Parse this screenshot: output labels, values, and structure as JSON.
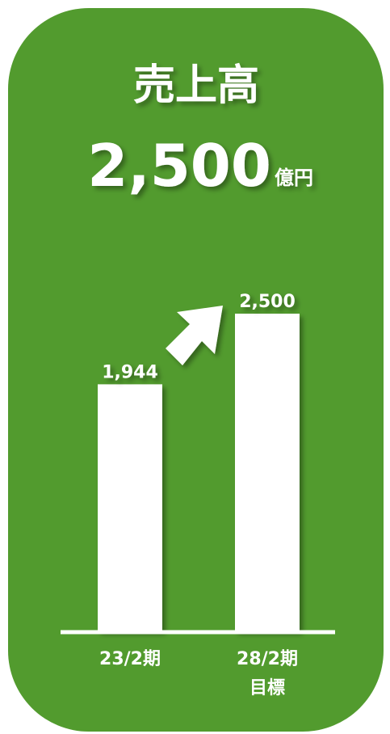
{
  "chart_data": {
    "type": "bar",
    "title": "売上高",
    "subtitle": "2,500",
    "subtitle_unit": "億円",
    "categories": [
      "23/2期",
      "28/2期\n目標"
    ],
    "values": [
      1944,
      2500
    ],
    "value_labels": [
      "1,944",
      "2,500"
    ],
    "color": "#ffffff"
  }
}
